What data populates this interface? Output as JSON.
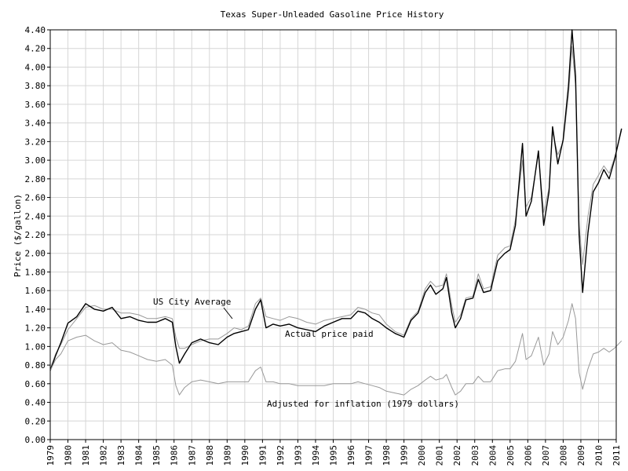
{
  "chart_data": {
    "type": "line",
    "title": "Texas Super-Unleaded Gasoline Price History",
    "xlabel": "",
    "ylabel": "Price ($/gallon)",
    "xlim": [
      1979,
      2011
    ],
    "ylim": [
      0.0,
      4.4
    ],
    "grid": true,
    "x_ticks": [
      "1979",
      "1980",
      "1981",
      "1982",
      "1983",
      "1984",
      "1985",
      "1986",
      "1987",
      "1988",
      "1989",
      "1990",
      "1991",
      "1992",
      "1993",
      "1994",
      "1995",
      "1996",
      "1997",
      "1998",
      "1999",
      "2000",
      "2001",
      "2002",
      "2003",
      "2004",
      "2005",
      "2006",
      "2007",
      "2008",
      "2009",
      "2010",
      "2011"
    ],
    "y_ticks": [
      "0.00",
      "0.20",
      "0.40",
      "0.60",
      "0.80",
      "1.00",
      "1.20",
      "1.40",
      "1.60",
      "1.80",
      "2.00",
      "2.20",
      "2.40",
      "2.60",
      "2.80",
      "3.00",
      "3.20",
      "3.40",
      "3.60",
      "3.80",
      "4.00",
      "4.20",
      "4.40"
    ],
    "annotations": [
      {
        "text": "US City Average",
        "series": "us_city_average"
      },
      {
        "text": "Actual price paid",
        "series": "actual_price_paid"
      },
      {
        "text": "Adjusted for inflation (1979 dollars)",
        "series": "inflation_adjusted"
      }
    ],
    "series": [
      {
        "key": "us_city_average",
        "color": "#999999",
        "points": [
          [
            1979.0,
            0.76
          ],
          [
            1979.3,
            0.92
          ],
          [
            1979.6,
            1.02
          ],
          [
            1980.0,
            1.18
          ],
          [
            1980.5,
            1.3
          ],
          [
            1981.0,
            1.42
          ],
          [
            1981.5,
            1.44
          ],
          [
            1982.0,
            1.4
          ],
          [
            1982.5,
            1.4
          ],
          [
            1983.0,
            1.36
          ],
          [
            1983.5,
            1.36
          ],
          [
            1984.0,
            1.34
          ],
          [
            1984.5,
            1.3
          ],
          [
            1985.0,
            1.3
          ],
          [
            1985.5,
            1.32
          ],
          [
            1985.9,
            1.3
          ],
          [
            1986.1,
            1.1
          ],
          [
            1986.3,
            0.98
          ],
          [
            1986.6,
            0.98
          ],
          [
            1987.0,
            1.02
          ],
          [
            1987.5,
            1.06
          ],
          [
            1988.0,
            1.08
          ],
          [
            1988.5,
            1.08
          ],
          [
            1989.0,
            1.14
          ],
          [
            1989.4,
            1.2
          ],
          [
            1989.8,
            1.18
          ],
          [
            1990.2,
            1.22
          ],
          [
            1990.6,
            1.46
          ],
          [
            1990.9,
            1.52
          ],
          [
            1991.2,
            1.32
          ],
          [
            1991.6,
            1.3
          ],
          [
            1992.0,
            1.28
          ],
          [
            1992.5,
            1.32
          ],
          [
            1993.0,
            1.3
          ],
          [
            1993.5,
            1.26
          ],
          [
            1994.0,
            1.24
          ],
          [
            1994.5,
            1.28
          ],
          [
            1995.0,
            1.3
          ],
          [
            1995.5,
            1.32
          ],
          [
            1996.0,
            1.34
          ],
          [
            1996.4,
            1.42
          ],
          [
            1996.8,
            1.4
          ],
          [
            1997.2,
            1.36
          ],
          [
            1997.6,
            1.34
          ],
          [
            1998.0,
            1.24
          ],
          [
            1998.5,
            1.16
          ],
          [
            1999.0,
            1.12
          ],
          [
            1999.4,
            1.3
          ],
          [
            1999.8,
            1.38
          ],
          [
            2000.2,
            1.62
          ],
          [
            2000.5,
            1.7
          ],
          [
            2000.8,
            1.64
          ],
          [
            2001.2,
            1.66
          ],
          [
            2001.4,
            1.78
          ],
          [
            2001.7,
            1.44
          ],
          [
            2001.9,
            1.26
          ],
          [
            2002.2,
            1.34
          ],
          [
            2002.5,
            1.52
          ],
          [
            2002.9,
            1.54
          ],
          [
            2003.2,
            1.78
          ],
          [
            2003.5,
            1.62
          ],
          [
            2003.9,
            1.64
          ],
          [
            2004.3,
            1.98
          ],
          [
            2004.7,
            2.06
          ],
          [
            2005.0,
            2.08
          ],
          [
            2005.3,
            2.36
          ],
          [
            2005.7,
            3.0
          ],
          [
            2005.9,
            2.5
          ],
          [
            2006.2,
            2.6
          ],
          [
            2006.6,
            3.06
          ],
          [
            2006.9,
            2.44
          ],
          [
            2007.2,
            2.7
          ],
          [
            2007.4,
            3.3
          ],
          [
            2007.7,
            3.06
          ],
          [
            2008.0,
            3.2
          ],
          [
            2008.3,
            3.7
          ],
          [
            2008.5,
            4.22
          ],
          [
            2008.7,
            3.8
          ],
          [
            2008.9,
            2.3
          ],
          [
            2009.1,
            1.88
          ],
          [
            2009.4,
            2.4
          ],
          [
            2009.7,
            2.74
          ],
          [
            2010.0,
            2.84
          ],
          [
            2010.3,
            2.94
          ],
          [
            2010.6,
            2.86
          ],
          [
            2010.9,
            3.02
          ],
          [
            2011.3,
            3.32
          ]
        ]
      },
      {
        "key": "actual_price_paid",
        "color": "#000000",
        "points": [
          [
            1979.0,
            0.74
          ],
          [
            1979.3,
            0.9
          ],
          [
            1979.6,
            1.04
          ],
          [
            1980.0,
            1.25
          ],
          [
            1980.5,
            1.32
          ],
          [
            1981.0,
            1.46
          ],
          [
            1981.5,
            1.4
          ],
          [
            1982.0,
            1.38
          ],
          [
            1982.5,
            1.42
          ],
          [
            1983.0,
            1.3
          ],
          [
            1983.5,
            1.32
          ],
          [
            1984.0,
            1.28
          ],
          [
            1984.5,
            1.26
          ],
          [
            1985.0,
            1.26
          ],
          [
            1985.5,
            1.3
          ],
          [
            1985.9,
            1.26
          ],
          [
            1986.1,
            1.0
          ],
          [
            1986.3,
            0.82
          ],
          [
            1986.6,
            0.92
          ],
          [
            1987.0,
            1.04
          ],
          [
            1987.5,
            1.08
          ],
          [
            1988.0,
            1.04
          ],
          [
            1988.5,
            1.02
          ],
          [
            1989.0,
            1.1
          ],
          [
            1989.4,
            1.14
          ],
          [
            1989.8,
            1.16
          ],
          [
            1990.2,
            1.18
          ],
          [
            1990.6,
            1.4
          ],
          [
            1990.9,
            1.5
          ],
          [
            1991.2,
            1.2
          ],
          [
            1991.6,
            1.24
          ],
          [
            1992.0,
            1.22
          ],
          [
            1992.5,
            1.24
          ],
          [
            1993.0,
            1.2
          ],
          [
            1993.5,
            1.18
          ],
          [
            1994.0,
            1.16
          ],
          [
            1994.5,
            1.22
          ],
          [
            1995.0,
            1.26
          ],
          [
            1995.5,
            1.3
          ],
          [
            1996.0,
            1.3
          ],
          [
            1996.4,
            1.38
          ],
          [
            1996.8,
            1.36
          ],
          [
            1997.2,
            1.3
          ],
          [
            1997.6,
            1.26
          ],
          [
            1998.0,
            1.2
          ],
          [
            1998.5,
            1.14
          ],
          [
            1999.0,
            1.1
          ],
          [
            1999.4,
            1.28
          ],
          [
            1999.8,
            1.36
          ],
          [
            2000.2,
            1.58
          ],
          [
            2000.5,
            1.66
          ],
          [
            2000.8,
            1.56
          ],
          [
            2001.2,
            1.62
          ],
          [
            2001.4,
            1.74
          ],
          [
            2001.7,
            1.36
          ],
          [
            2001.9,
            1.2
          ],
          [
            2002.2,
            1.3
          ],
          [
            2002.5,
            1.5
          ],
          [
            2002.9,
            1.52
          ],
          [
            2003.2,
            1.72
          ],
          [
            2003.5,
            1.58
          ],
          [
            2003.9,
            1.6
          ],
          [
            2004.3,
            1.92
          ],
          [
            2004.7,
            2.0
          ],
          [
            2005.0,
            2.04
          ],
          [
            2005.3,
            2.3
          ],
          [
            2005.7,
            3.18
          ],
          [
            2005.9,
            2.4
          ],
          [
            2006.2,
            2.56
          ],
          [
            2006.6,
            3.1
          ],
          [
            2006.9,
            2.3
          ],
          [
            2007.2,
            2.66
          ],
          [
            2007.4,
            3.36
          ],
          [
            2007.7,
            2.96
          ],
          [
            2008.0,
            3.22
          ],
          [
            2008.3,
            3.8
          ],
          [
            2008.5,
            4.4
          ],
          [
            2008.7,
            3.9
          ],
          [
            2008.9,
            2.2
          ],
          [
            2009.1,
            1.58
          ],
          [
            2009.4,
            2.22
          ],
          [
            2009.7,
            2.66
          ],
          [
            2010.0,
            2.76
          ],
          [
            2010.3,
            2.9
          ],
          [
            2010.6,
            2.8
          ],
          [
            2010.9,
            3.0
          ],
          [
            2011.3,
            3.34
          ]
        ]
      },
      {
        "key": "inflation_adjusted",
        "color": "#999999",
        "points": [
          [
            1979.0,
            0.74
          ],
          [
            1979.3,
            0.86
          ],
          [
            1979.6,
            0.92
          ],
          [
            1980.0,
            1.06
          ],
          [
            1980.5,
            1.1
          ],
          [
            1981.0,
            1.12
          ],
          [
            1981.5,
            1.06
          ],
          [
            1982.0,
            1.02
          ],
          [
            1982.5,
            1.04
          ],
          [
            1983.0,
            0.96
          ],
          [
            1983.5,
            0.94
          ],
          [
            1984.0,
            0.9
          ],
          [
            1984.5,
            0.86
          ],
          [
            1985.0,
            0.84
          ],
          [
            1985.5,
            0.86
          ],
          [
            1985.9,
            0.8
          ],
          [
            1986.1,
            0.58
          ],
          [
            1986.3,
            0.48
          ],
          [
            1986.6,
            0.56
          ],
          [
            1987.0,
            0.62
          ],
          [
            1987.5,
            0.64
          ],
          [
            1988.0,
            0.62
          ],
          [
            1988.5,
            0.6
          ],
          [
            1989.0,
            0.62
          ],
          [
            1989.4,
            0.62
          ],
          [
            1989.8,
            0.62
          ],
          [
            1990.2,
            0.62
          ],
          [
            1990.6,
            0.74
          ],
          [
            1990.9,
            0.78
          ],
          [
            1991.2,
            0.62
          ],
          [
            1991.6,
            0.62
          ],
          [
            1992.0,
            0.6
          ],
          [
            1992.5,
            0.6
          ],
          [
            1993.0,
            0.58
          ],
          [
            1993.5,
            0.58
          ],
          [
            1994.0,
            0.58
          ],
          [
            1994.5,
            0.58
          ],
          [
            1995.0,
            0.6
          ],
          [
            1995.5,
            0.6
          ],
          [
            1996.0,
            0.6
          ],
          [
            1996.4,
            0.62
          ],
          [
            1996.8,
            0.6
          ],
          [
            1997.2,
            0.58
          ],
          [
            1997.6,
            0.56
          ],
          [
            1998.0,
            0.52
          ],
          [
            1998.5,
            0.5
          ],
          [
            1999.0,
            0.48
          ],
          [
            1999.4,
            0.54
          ],
          [
            1999.8,
            0.58
          ],
          [
            2000.2,
            0.64
          ],
          [
            2000.5,
            0.68
          ],
          [
            2000.8,
            0.64
          ],
          [
            2001.2,
            0.66
          ],
          [
            2001.4,
            0.7
          ],
          [
            2001.7,
            0.56
          ],
          [
            2001.9,
            0.48
          ],
          [
            2002.2,
            0.52
          ],
          [
            2002.5,
            0.6
          ],
          [
            2002.9,
            0.6
          ],
          [
            2003.2,
            0.68
          ],
          [
            2003.5,
            0.62
          ],
          [
            2003.9,
            0.62
          ],
          [
            2004.3,
            0.74
          ],
          [
            2004.7,
            0.76
          ],
          [
            2005.0,
            0.76
          ],
          [
            2005.3,
            0.84
          ],
          [
            2005.7,
            1.14
          ],
          [
            2005.9,
            0.86
          ],
          [
            2006.2,
            0.9
          ],
          [
            2006.6,
            1.1
          ],
          [
            2006.9,
            0.8
          ],
          [
            2007.2,
            0.92
          ],
          [
            2007.4,
            1.16
          ],
          [
            2007.7,
            1.02
          ],
          [
            2008.0,
            1.1
          ],
          [
            2008.3,
            1.28
          ],
          [
            2008.5,
            1.46
          ],
          [
            2008.7,
            1.3
          ],
          [
            2008.9,
            0.72
          ],
          [
            2009.1,
            0.54
          ],
          [
            2009.4,
            0.76
          ],
          [
            2009.7,
            0.92
          ],
          [
            2010.0,
            0.94
          ],
          [
            2010.3,
            0.98
          ],
          [
            2010.6,
            0.94
          ],
          [
            2010.9,
            0.98
          ],
          [
            2011.3,
            1.06
          ]
        ]
      }
    ]
  }
}
